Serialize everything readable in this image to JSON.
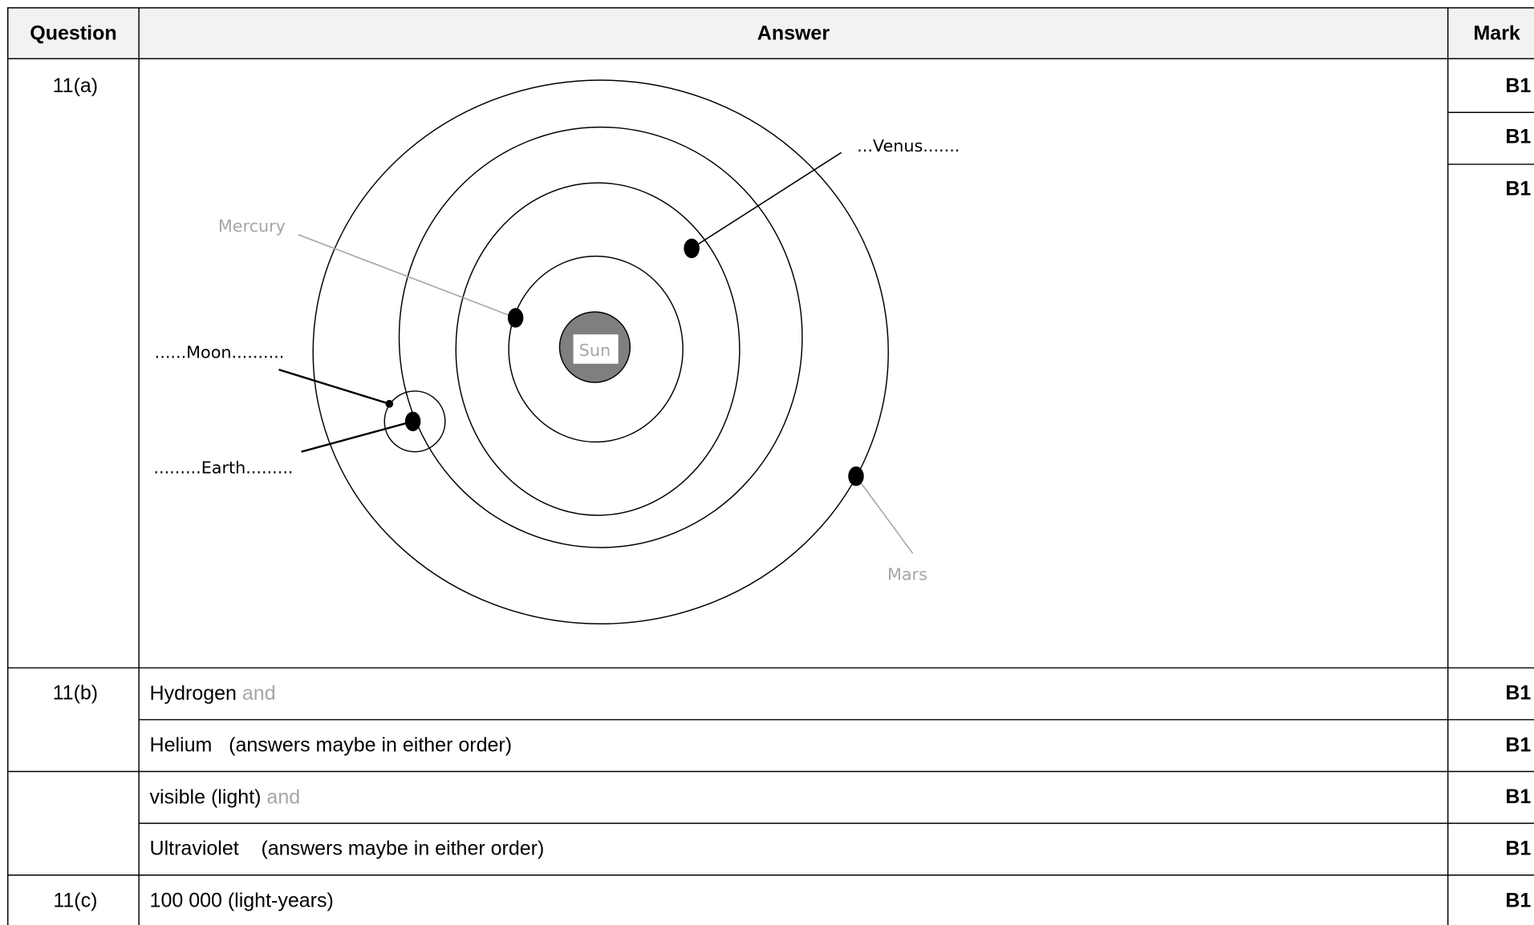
{
  "header": {
    "question": "Question",
    "answer": "Answer",
    "mark": "Mark"
  },
  "rows": [
    {
      "question": "11(a)",
      "marks": [
        "B1",
        "B1",
        "B1"
      ],
      "diagram": {
        "sun": "Sun",
        "mercury": "Mercury",
        "venus": "...Venus.......",
        "moon": "......Moon..........",
        "earth": ".........Earth.........",
        "mars": "Mars"
      }
    },
    {
      "question": "11(b)",
      "answer": "Hydrogen",
      "connector": "and",
      "mark": "B1"
    },
    {
      "answer": "Helium   (answers maybe in either order)",
      "mark": "B1"
    },
    {
      "answer": "visible (light)",
      "connector": "and",
      "mark": "B1"
    },
    {
      "answer": "Ultraviolet    (answers maybe in either order)",
      "mark": "B1"
    },
    {
      "question": "11(c)",
      "answer": "100 000 (light-years)",
      "mark": "B1"
    }
  ]
}
